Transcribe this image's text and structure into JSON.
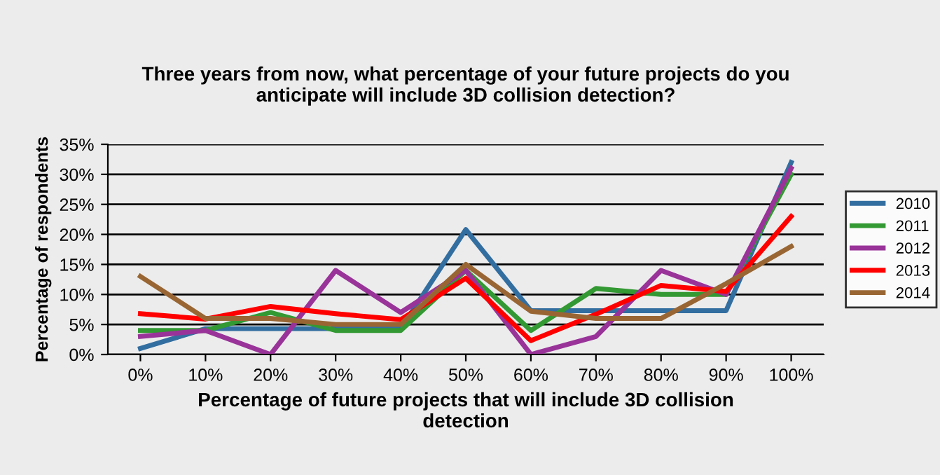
{
  "chart_data": {
    "type": "line",
    "title": "Three years from now, what percentage of your future projects do you\nanticipate will include 3D collision detection?",
    "xlabel": "Percentage of future projects that will include 3D collision\ndetection",
    "ylabel": "Percentage of respondents",
    "categories": [
      "0%",
      "10%",
      "20%",
      "30%",
      "40%",
      "50%",
      "60%",
      "70%",
      "80%",
      "90%",
      "100%"
    ],
    "series": [
      {
        "name": "2010",
        "color": "#336ea0",
        "values": [
          1,
          4.3,
          4.3,
          4.3,
          4.3,
          20.8,
          7.3,
          7.3,
          7.3,
          7.3,
          32
        ]
      },
      {
        "name": "2011",
        "color": "#339933",
        "values": [
          4,
          4,
          7,
          4,
          4,
          14,
          4,
          11,
          10,
          10,
          30
        ]
      },
      {
        "name": "2012",
        "color": "#993399",
        "values": [
          3,
          4,
          0,
          14,
          7,
          14,
          0,
          3,
          14,
          10,
          31
        ]
      },
      {
        "name": "2013",
        "color": "#ff0000",
        "values": [
          6.8,
          5.9,
          8,
          6.8,
          5.8,
          12.7,
          2.3,
          6.7,
          11.5,
          10.5,
          23
        ]
      },
      {
        "name": "2014",
        "color": "#996633",
        "values": [
          13,
          6,
          6,
          5,
          5,
          15,
          7.2,
          6,
          6,
          11.8,
          18
        ]
      }
    ],
    "ylim": [
      0,
      35
    ],
    "yticks": [
      {
        "value": 0,
        "label": "0%"
      },
      {
        "value": 5,
        "label": "5%"
      },
      {
        "value": 10,
        "label": "10%"
      },
      {
        "value": 15,
        "label": "15%"
      },
      {
        "value": 20,
        "label": "20%"
      },
      {
        "value": 25,
        "label": "25%"
      },
      {
        "value": 30,
        "label": "30%"
      },
      {
        "value": 35,
        "label": "35%"
      }
    ],
    "grid": "y",
    "legend": "right",
    "marker": "none",
    "line_style": "solid"
  }
}
